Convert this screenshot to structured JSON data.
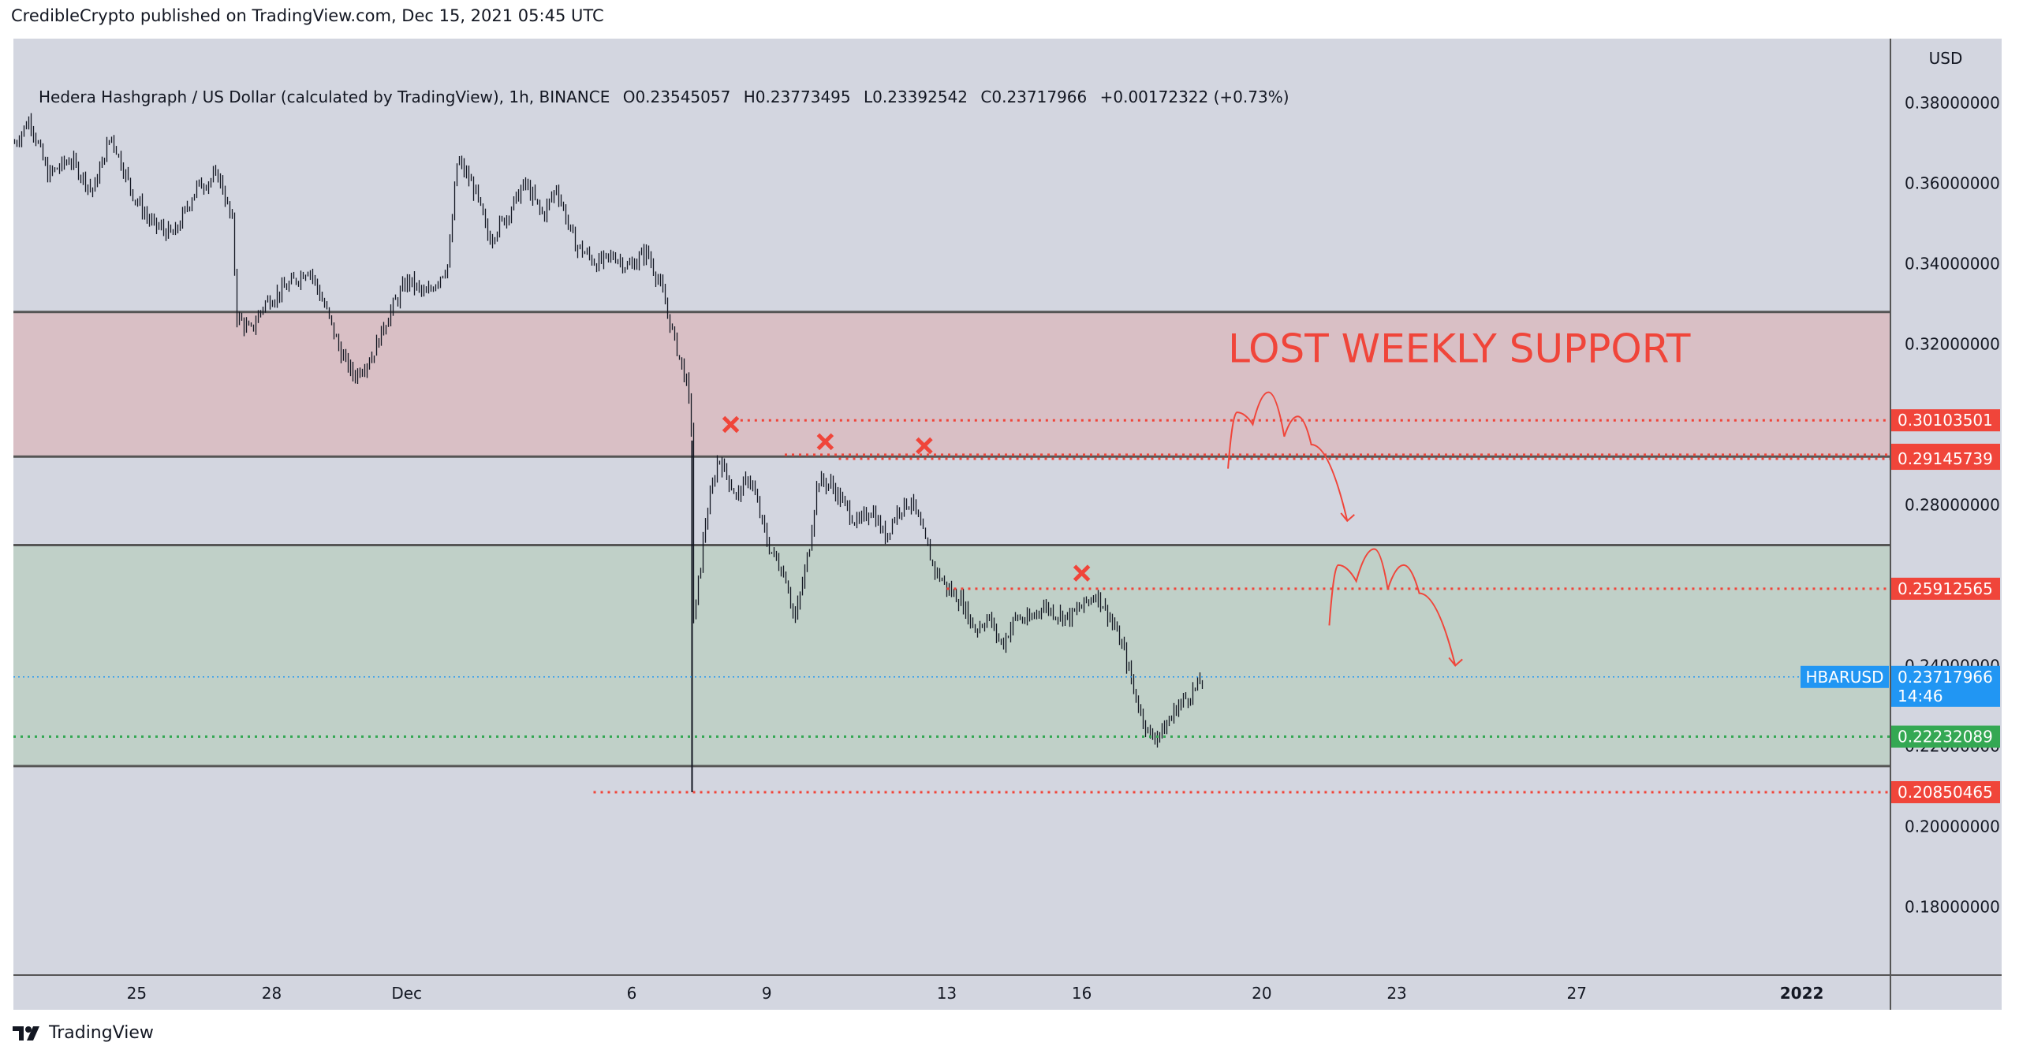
{
  "header": {
    "caption": "CredibleCrypto published on TradingView.com, Dec 15, 2021 05:45 UTC"
  },
  "legend": {
    "symbol": "Hedera Hashgraph / US Dollar (calculated by TradingView), 1h, BINANCE",
    "open_label": "O",
    "open": "0.23545057",
    "high_label": "H",
    "high": "0.23773495",
    "low_label": "L",
    "low": "0.23392542",
    "close_label": "C",
    "close": "0.23717966",
    "change": "+0.00172322 (+0.73%)"
  },
  "footer": {
    "brand": "TradingView"
  },
  "colors": {
    "background": "#d3d6e0",
    "red_zone": "#d9bfc5",
    "green_zone": "#c0d0c8",
    "resistance_red": "#f0453a",
    "support_green": "#34a853",
    "price_blue": "#2196f3",
    "candles": "#131722",
    "zone_border": "#555555"
  },
  "chart_data": {
    "type": "candlestick",
    "symbol": "HBARUSD",
    "currency": "USD",
    "y_axis_unit_label": "USD",
    "ylim": [
      0.163,
      0.396
    ],
    "y_ticks": [
      "0.38000000",
      "0.36000000",
      "0.34000000",
      "0.32000000",
      "0.30000000",
      "0.28000000",
      "0.26000000",
      "0.24000000",
      "0.22000000",
      "0.20000000",
      "0.18000000"
    ],
    "y_tick_values": [
      0.38,
      0.36,
      0.34,
      0.32,
      0.3,
      0.28,
      0.26,
      0.24,
      0.22,
      0.2,
      0.18
    ],
    "x_ticks": [
      {
        "label": "25",
        "day": 25
      },
      {
        "label": "28",
        "day": 28
      },
      {
        "label": "Dec",
        "day": 31
      },
      {
        "label": "6",
        "day": 36
      },
      {
        "label": "9",
        "day": 39
      },
      {
        "label": "13",
        "day": 43
      },
      {
        "label": "16",
        "day": 46
      },
      {
        "label": "20",
        "day": 50
      },
      {
        "label": "23",
        "day": 53
      },
      {
        "label": "27",
        "day": 57
      },
      {
        "label": "2022",
        "day": 62
      }
    ],
    "xlim": [
      22.26,
      63.97
    ],
    "price_path": [
      [
        22.26,
        0.37
      ],
      [
        22.6,
        0.376
      ],
      [
        23.0,
        0.362
      ],
      [
        23.5,
        0.366
      ],
      [
        24.0,
        0.358
      ],
      [
        24.4,
        0.372
      ],
      [
        24.9,
        0.357
      ],
      [
        25.3,
        0.35
      ],
      [
        25.8,
        0.347
      ],
      [
        26.3,
        0.359
      ],
      [
        26.8,
        0.362
      ],
      [
        27.1,
        0.35
      ],
      [
        27.2,
        0.327
      ],
      [
        27.5,
        0.323
      ],
      [
        27.8,
        0.33
      ],
      [
        28.4,
        0.335
      ],
      [
        28.8,
        0.339
      ],
      [
        29.2,
        0.328
      ],
      [
        29.5,
        0.318
      ],
      [
        29.8,
        0.312
      ],
      [
        30.2,
        0.317
      ],
      [
        30.6,
        0.328
      ],
      [
        31.0,
        0.336
      ],
      [
        31.4,
        0.332
      ],
      [
        31.9,
        0.34
      ],
      [
        32.1,
        0.366
      ],
      [
        32.5,
        0.358
      ],
      [
        32.8,
        0.346
      ],
      [
        33.2,
        0.352
      ],
      [
        33.6,
        0.36
      ],
      [
        34.0,
        0.352
      ],
      [
        34.3,
        0.359
      ],
      [
        34.7,
        0.345
      ],
      [
        35.2,
        0.34
      ],
      [
        35.6,
        0.342
      ],
      [
        35.9,
        0.339
      ],
      [
        36.3,
        0.343
      ],
      [
        36.6,
        0.335
      ],
      [
        36.9,
        0.322
      ],
      [
        37.2,
        0.31
      ],
      [
        37.33,
        0.296
      ],
      [
        37.35,
        0.25
      ],
      [
        37.6,
        0.275
      ],
      [
        37.9,
        0.292
      ],
      [
        38.3,
        0.282
      ],
      [
        38.6,
        0.287
      ],
      [
        39.0,
        0.27
      ],
      [
        39.4,
        0.262
      ],
      [
        39.6,
        0.251
      ],
      [
        39.9,
        0.268
      ],
      [
        40.1,
        0.286
      ],
      [
        40.4,
        0.285
      ],
      [
        40.7,
        0.28
      ],
      [
        41.0,
        0.275
      ],
      [
        41.3,
        0.279
      ],
      [
        41.6,
        0.272
      ],
      [
        41.9,
        0.279
      ],
      [
        42.2,
        0.281
      ],
      [
        42.4,
        0.274
      ],
      [
        42.7,
        0.264
      ],
      [
        43.0,
        0.259
      ],
      [
        43.3,
        0.256
      ],
      [
        43.6,
        0.249
      ],
      [
        43.9,
        0.252
      ],
      [
        44.2,
        0.245
      ],
      [
        44.5,
        0.252
      ],
      [
        44.8,
        0.251
      ],
      [
        45.1,
        0.255
      ],
      [
        45.4,
        0.253
      ],
      [
        45.7,
        0.252
      ],
      [
        46.0,
        0.255
      ],
      [
        46.3,
        0.258
      ],
      [
        46.6,
        0.252
      ],
      [
        46.9,
        0.244
      ],
      [
        47.2,
        0.231
      ],
      [
        47.5,
        0.222
      ],
      [
        47.8,
        0.224
      ],
      [
        48.1,
        0.23
      ],
      [
        48.4,
        0.233
      ],
      [
        48.7,
        0.237
      ]
    ],
    "horizontal_levels": [
      {
        "label": "0.30103501",
        "value": 0.30103501,
        "color": "#f0453a",
        "style": "dotted",
        "start_day": 38.1
      },
      {
        "label": "0.29246127",
        "value": 0.29246127,
        "color": "#f0453a",
        "style": "dotted",
        "start_day": 39.4
      },
      {
        "label": "0.29145739",
        "value": 0.29145739,
        "color": "#f0453a",
        "style": "dotted",
        "start_day": 40.6
      },
      {
        "label": "0.25912565",
        "value": 0.25912565,
        "color": "#f0453a",
        "style": "dotted",
        "start_day": 43.0
      },
      {
        "label": "0.22232089",
        "value": 0.22232089,
        "color": "#34a853",
        "style": "dotted",
        "start_day": 22.26
      },
      {
        "label": "0.20850465",
        "value": 0.20850465,
        "color": "#f0453a",
        "style": "dotted",
        "start_day": 35.15
      }
    ],
    "current_price": {
      "label": "0.23717966",
      "value": 0.23717966,
      "symbol": "HBARUSD",
      "countdown": "14:46",
      "color": "#2196f3"
    },
    "zones": [
      {
        "name": "red",
        "from": 0.292,
        "to": 0.328,
        "color": "#d9bfc5"
      },
      {
        "name": "green",
        "from": 0.215,
        "to": 0.27,
        "color": "#c0d0c8"
      }
    ],
    "rejection_marks": [
      {
        "day": 38.2,
        "price": 0.3
      },
      {
        "day": 40.3,
        "price": 0.2957
      },
      {
        "day": 42.5,
        "price": 0.2947
      },
      {
        "day": 46.0,
        "price": 0.263
      }
    ],
    "forecast_paths": [
      [
        [
          49.25,
          0.289
        ],
        [
          49.45,
          0.303
        ],
        [
          49.8,
          0.3
        ],
        [
          50.15,
          0.308
        ],
        [
          50.5,
          0.297
        ],
        [
          50.8,
          0.302
        ],
        [
          51.1,
          0.295
        ],
        [
          51.9,
          0.276
        ]
      ],
      [
        [
          51.5,
          0.25
        ],
        [
          51.7,
          0.265
        ],
        [
          52.1,
          0.261
        ],
        [
          52.5,
          0.269
        ],
        [
          52.8,
          0.259
        ],
        [
          53.15,
          0.265
        ],
        [
          53.5,
          0.258
        ],
        [
          54.3,
          0.24
        ]
      ]
    ],
    "annotation": {
      "text": "LOST WEEKLY SUPPORT",
      "color": "#f0453a"
    }
  }
}
